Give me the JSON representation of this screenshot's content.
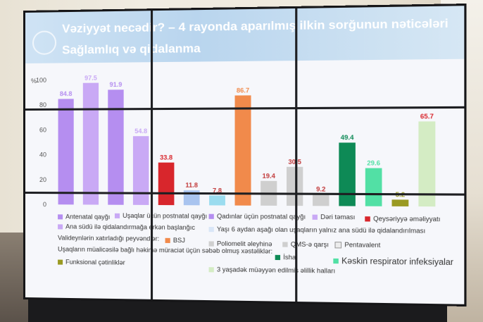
{
  "slide": {
    "title": "Vəziyyət necədir? – 4 rayonda aparılmış ilkin sorğunun nəticələri",
    "subtitle": "Sağlamlıq və qidalanma"
  },
  "colors": {
    "purple": "#b58ef0",
    "purple_light": "#c9a9f5",
    "red": "#d8262c",
    "lightblue": "#a9c4ef",
    "cyan": "#9bdcef",
    "orange": "#f18a4b",
    "gray": "#cfcfcf",
    "green_dark": "#0e8a56",
    "green_light": "#52e0a5",
    "olive": "#9a9a22",
    "green_pale": "#d4ecc4"
  },
  "chart_data": {
    "type": "bar",
    "ylabel": "%",
    "ylim": [
      0,
      100
    ],
    "yticks": [
      0,
      20,
      40,
      60,
      80,
      100
    ],
    "bars": [
      {
        "label": "84.8",
        "value": 84.8,
        "color": "purple"
      },
      {
        "label": "97.5",
        "value": 97.5,
        "color": "purple_light"
      },
      {
        "label": "91.9",
        "value": 91.9,
        "color": "purple"
      },
      {
        "label": "54.8",
        "value": 54.8,
        "color": "purple_light"
      },
      {
        "label": "33.8",
        "value": 33.8,
        "color": "red"
      },
      {
        "label": "11.8",
        "value": 11.8,
        "color": "lightblue"
      },
      {
        "label": "7.8",
        "value": 7.8,
        "color": "cyan"
      },
      {
        "label": "86.7",
        "value": 86.7,
        "color": "orange"
      },
      {
        "label": "19.4",
        "value": 19.4,
        "color": "gray"
      },
      {
        "label": "30.5",
        "value": 30.5,
        "color": "gray"
      },
      {
        "label": "9.2",
        "value": 9.2,
        "color": "gray"
      },
      {
        "label": "49.4",
        "value": 49.4,
        "color": "green_dark"
      },
      {
        "label": "29.6",
        "value": 29.6,
        "color": "green_light"
      },
      {
        "label": "5.2",
        "value": 5.2,
        "color": "olive"
      },
      {
        "label": "65.7",
        "value": 65.7,
        "color": "green_pale"
      }
    ]
  },
  "legend": {
    "antenatal": "Antenatal qayğı",
    "usaqlar_postnatal": "Uşaqlar üçün postnatal qayğı",
    "qadinlar_postnatal": "Qadınlar üçün postnatal qayğı",
    "deri": "Dəri təması",
    "qeysar": "Qeysəriyyə əməliyyatı",
    "ana_sudu": "Ana südü ilə qidalandırmağa erkən başlanğıc",
    "yasi6": "Yaşı 6 aydan aşağı olan uşaqların yalnız ana südü ilə qidalandırılması",
    "peyvend_heading": "Valideynlərin xatırladığı peyvəndlər:",
    "bsj": "BSJ",
    "polio": "Poliomelit əleyhinə",
    "qms": "QMS-ə qarşı",
    "penta": "Pentavalent",
    "xestelik_heading": "Uşaqların müalicəsilə bağlı həkimə müraciət üçün səbəb olmuş xəstəliklər:",
    "ishal": "İshal",
    "kaskin": "Kəskin respirator infeksiyalar",
    "funksional": "Funksional çətinliklər",
    "aliliq": "3 yaşadək müəyyən edilmiş əlillik halları"
  }
}
